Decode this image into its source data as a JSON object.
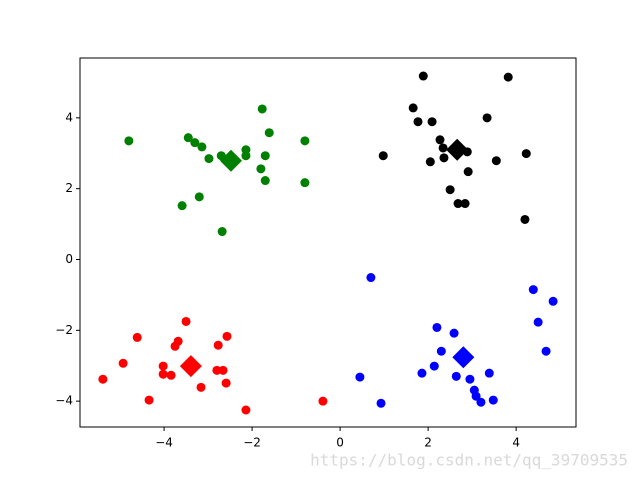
{
  "chart_data": {
    "type": "scatter",
    "xlim": [
      -5.91,
      5.36
    ],
    "ylim": [
      -4.73,
      5.69
    ],
    "xticks": [
      {
        "value": -4,
        "label": "−4"
      },
      {
        "value": -2,
        "label": "−2"
      },
      0,
      2,
      4
    ],
    "yticks": [
      {
        "value": -4,
        "label": "−4"
      },
      {
        "value": -2,
        "label": "−2"
      },
      0,
      2,
      4
    ],
    "grid": false,
    "watermark": "https://blog.csdn.net/qq_39709535",
    "series": [
      {
        "color": "#008000",
        "marker": "o",
        "x": [
          -4.8,
          -3.45,
          -3.3,
          -3.14,
          -2.98,
          -2.7,
          -2.14,
          -2.14,
          -1.8,
          -1.7,
          -1.77,
          -1.61,
          -0.8,
          -1.7,
          -0.8,
          -3.59,
          -3.2,
          -2.68
        ],
        "y": [
          3.35,
          3.44,
          3.3,
          3.18,
          2.85,
          2.93,
          3.1,
          2.93,
          2.56,
          2.93,
          4.25,
          3.58,
          3.35,
          2.23,
          2.17,
          1.52,
          1.77,
          0.79
        ]
      },
      {
        "color": "#000000",
        "marker": "o",
        "x": [
          1.89,
          1.66,
          1.77,
          2.09,
          0.98,
          2.27,
          2.34,
          2.05,
          2.36,
          3.34,
          2.89,
          3.55,
          4.23,
          3.82,
          2.5,
          2.91,
          2.68,
          2.84,
          4.2
        ],
        "y": [
          5.18,
          4.28,
          3.89,
          3.89,
          2.93,
          3.38,
          3.15,
          2.76,
          2.87,
          4.0,
          3.04,
          2.79,
          2.99,
          5.15,
          1.97,
          2.48,
          1.58,
          1.58,
          1.13
        ]
      },
      {
        "color": "#0000ff",
        "marker": "o",
        "x": [
          0.7,
          4.39,
          4.84,
          4.5,
          4.68,
          2.2,
          2.3,
          2.59,
          2.14,
          1.86,
          2.64,
          2.95,
          3.39,
          3.05,
          3.09,
          3.2,
          3.48,
          0.45,
          0.93
        ],
        "y": [
          -0.51,
          -0.85,
          -1.18,
          -1.77,
          -2.59,
          -1.92,
          -2.59,
          -2.08,
          -3.01,
          -3.21,
          -3.3,
          -3.38,
          -3.21,
          -3.69,
          -3.86,
          -4.03,
          -3.97,
          -3.32,
          -4.06
        ]
      },
      {
        "color": "#ff0000",
        "marker": "o",
        "x": [
          -3.5,
          -3.68,
          -3.75,
          -4.61,
          -4.93,
          -5.39,
          -4.02,
          -4.02,
          -3.84,
          -4.34,
          -3.16,
          -2.8,
          -2.66,
          -2.57,
          -2.77,
          -2.59,
          -2.14,
          -0.39
        ],
        "y": [
          -1.75,
          -2.31,
          -2.45,
          -2.2,
          -2.93,
          -3.38,
          -3.01,
          -3.24,
          -3.27,
          -3.97,
          -3.61,
          -3.13,
          -3.13,
          -2.17,
          -2.42,
          -3.49,
          -4.25,
          -4.0
        ]
      },
      {
        "color": "#008000",
        "marker": "D",
        "x": [
          -2.48
        ],
        "y": [
          2.79
        ]
      },
      {
        "color": "#000000",
        "marker": "D",
        "x": [
          2.66
        ],
        "y": [
          3.1
        ]
      },
      {
        "color": "#0000ff",
        "marker": "D",
        "x": [
          2.8
        ],
        "y": [
          -2.76
        ]
      },
      {
        "color": "#ff0000",
        "marker": "D",
        "x": [
          -3.39
        ],
        "y": [
          -3.01
        ]
      }
    ]
  }
}
